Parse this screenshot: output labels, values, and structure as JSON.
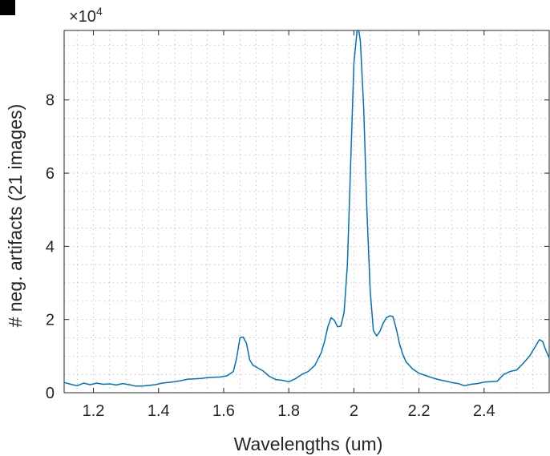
{
  "chart_data": {
    "type": "line",
    "title": "",
    "xlabel": "Wavelengths (um)",
    "ylabel": "# neg. artifacts (21 images)",
    "xlim": [
      1.11,
      2.6
    ],
    "ylim": [
      0,
      99000
    ],
    "y_exponent_label": "×10",
    "y_exponent_power": "4",
    "xticks": [
      1.2,
      1.4,
      1.6,
      1.8,
      2.0,
      2.2,
      2.4
    ],
    "xtick_labels": [
      "1.2",
      "1.4",
      "1.6",
      "1.8",
      "2",
      "2.2",
      "2.4"
    ],
    "yticks": [
      0,
      20000,
      40000,
      60000,
      80000
    ],
    "ytick_labels": [
      "0",
      "2",
      "4",
      "6",
      "8"
    ],
    "grid": "minor-dotted",
    "line_color": "#0072bd",
    "series": [
      {
        "x": [
          1.11,
          1.13,
          1.15,
          1.17,
          1.19,
          1.21,
          1.23,
          1.25,
          1.27,
          1.29,
          1.31,
          1.33,
          1.35,
          1.37,
          1.39,
          1.41,
          1.43,
          1.45,
          1.47,
          1.49,
          1.51,
          1.53,
          1.55,
          1.57,
          1.59,
          1.61,
          1.63,
          1.64,
          1.65,
          1.66,
          1.67,
          1.68,
          1.69,
          1.7,
          1.72,
          1.74,
          1.76,
          1.78,
          1.8,
          1.82,
          1.84,
          1.86,
          1.88,
          1.9,
          1.91,
          1.92,
          1.93,
          1.94,
          1.95,
          1.96,
          1.97,
          1.98,
          1.99,
          2.0,
          2.01,
          2.015,
          2.02,
          2.03,
          2.04,
          2.05,
          2.06,
          2.07,
          2.08,
          2.09,
          2.1,
          2.11,
          2.12,
          2.13,
          2.14,
          2.15,
          2.16,
          2.17,
          2.18,
          2.2,
          2.22,
          2.24,
          2.26,
          2.28,
          2.3,
          2.32,
          2.34,
          2.36,
          2.38,
          2.4,
          2.42,
          2.44,
          2.46,
          2.48,
          2.5,
          2.52,
          2.54,
          2.56,
          2.57,
          2.58,
          2.59,
          2.6
        ],
        "y": [
          2800,
          2300,
          1900,
          2600,
          2200,
          2600,
          2300,
          2400,
          2100,
          2500,
          2200,
          1800,
          1800,
          2000,
          2200,
          2600,
          2800,
          3000,
          3300,
          3700,
          3800,
          3900,
          4100,
          4200,
          4300,
          4600,
          5800,
          9500,
          15000,
          15200,
          13500,
          9000,
          7500,
          7000,
          6000,
          4500,
          3600,
          3400,
          3000,
          3800,
          5000,
          5800,
          7500,
          11000,
          14000,
          18000,
          20500,
          19800,
          18000,
          18200,
          22000,
          35000,
          62000,
          90000,
          99500,
          99000,
          96000,
          78000,
          50000,
          28000,
          17000,
          15500,
          16800,
          19000,
          20500,
          21000,
          20800,
          17500,
          13500,
          10500,
          8500,
          7500,
          6500,
          5300,
          4700,
          4100,
          3600,
          3200,
          2800,
          2500,
          1900,
          2300,
          2500,
          2900,
          3000,
          3100,
          5000,
          5800,
          6200,
          8000,
          10000,
          13000,
          14500,
          14000,
          11500,
          9500
        ]
      }
    ]
  }
}
